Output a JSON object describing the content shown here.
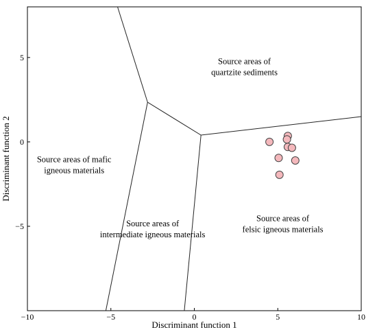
{
  "chart_data": {
    "type": "scatter",
    "title": "",
    "xlabel": "Discriminant function 1",
    "ylabel": "Discriminant function 2",
    "xlim": [
      -10,
      10
    ],
    "ylim": [
      -10,
      8
    ],
    "xticks": [
      -10,
      -5,
      0,
      5,
      10
    ],
    "xtick_labels": [
      "−10",
      "−5",
      "0",
      "5",
      "10"
    ],
    "yticks": [
      5,
      0,
      -5
    ],
    "ytick_labels": [
      "5",
      "0",
      "−5"
    ],
    "grid": false,
    "points": [
      {
        "x": 4.5,
        "y": 0.0
      },
      {
        "x": 5.6,
        "y": 0.35
      },
      {
        "x": 5.55,
        "y": 0.15
      },
      {
        "x": 5.6,
        "y": -0.3
      },
      {
        "x": 5.85,
        "y": -0.35
      },
      {
        "x": 5.05,
        "y": -0.95
      },
      {
        "x": 6.05,
        "y": -1.1
      },
      {
        "x": 5.1,
        "y": -1.95
      }
    ],
    "marker_fill": "#f4b8bc",
    "marker_stroke": "#444444",
    "boundaries": [
      [
        [
          -4.6,
          8
        ],
        [
          -2.8,
          2.35
        ],
        [
          0.4,
          0.4
        ],
        [
          10,
          1.5
        ]
      ],
      [
        [
          -2.8,
          2.35
        ],
        [
          -5.3,
          -10
        ]
      ],
      [
        [
          0.4,
          0.4
        ],
        [
          -0.6,
          -10
        ]
      ]
    ],
    "regions": [
      {
        "lines": [
          "Source areas of",
          "quartzite sediments"
        ],
        "x": 3.0,
        "y": 4.6
      },
      {
        "lines": [
          "Source areas of mafic",
          "igneous materials"
        ],
        "x": -7.2,
        "y": -1.2
      },
      {
        "lines": [
          "Source areas of",
          "intermediate  igneous materials"
        ],
        "x": -2.5,
        "y": -5.0
      },
      {
        "lines": [
          "Source areas of",
          "felsic igneous materials"
        ],
        "x": 5.3,
        "y": -4.7
      }
    ]
  }
}
